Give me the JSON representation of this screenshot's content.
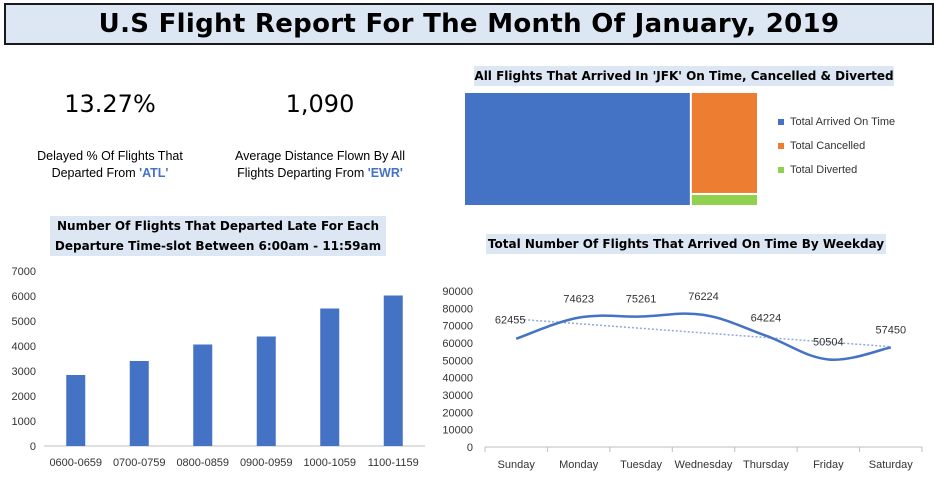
{
  "header": {
    "title": "U.S Flight Report For The Month Of January, 2019"
  },
  "kpis": [
    {
      "value": "13.27%",
      "desc_line1": "Delayed % Of Flights That",
      "desc_pre": "Departed From ",
      "desc_hl": "'ATL'",
      "desc_post": ""
    },
    {
      "value": "1,090",
      "desc_line1": "Average Distance Flown By All",
      "desc_pre": "Flights Departing From ",
      "desc_hl": "'EWR'",
      "desc_post": ""
    }
  ],
  "colors": {
    "blue": "#4472c4",
    "orange": "#ed7d31",
    "green": "#92d050",
    "title_bg": "#dde7f4"
  },
  "chart_data": [
    {
      "type": "bar",
      "title_line1": "Number Of Flights That Departed Late For Each",
      "title_line2": "Departure Time-slot Between 6:00am - 11:59am",
      "categories": [
        "0600-0659",
        "0700-0759",
        "0800-0859",
        "0900-0959",
        "1000-1059",
        "1100-1159"
      ],
      "values": [
        2840,
        3400,
        4060,
        4380,
        5500,
        6020
      ],
      "ylim": [
        0,
        7000
      ],
      "yticks": [
        0,
        1000,
        2000,
        3000,
        4000,
        5000,
        6000,
        7000
      ],
      "grid": false
    },
    {
      "type": "bar",
      "subtype": "stacked",
      "title": "All Flights That Arrived In 'JFK' On Time, Cancelled & Diverted",
      "series": [
        {
          "name": "Total Arrived On Time",
          "value": 0.77
        },
        {
          "name": "Total Cancelled",
          "value": 0.22
        },
        {
          "name": "Total Diverted",
          "value": 0.01
        }
      ],
      "legend": "right"
    },
    {
      "type": "line",
      "title": "Total Number Of Flights That Arrived On Time By Weekday",
      "categories": [
        "Sunday",
        "Monday",
        "Tuesday",
        "Wednesday",
        "Thursday",
        "Friday",
        "Saturday"
      ],
      "values": [
        62455,
        74623,
        75261,
        76224,
        64224,
        50504,
        57450
      ],
      "labels": [
        "62455",
        "74623",
        "75261",
        "76224",
        "64224",
        "50504",
        "57450"
      ],
      "trendline": "linear",
      "ylim": [
        0,
        90000
      ],
      "yticks": [
        0,
        10000,
        20000,
        30000,
        40000,
        50000,
        60000,
        70000,
        80000,
        90000
      ],
      "grid": false
    }
  ]
}
